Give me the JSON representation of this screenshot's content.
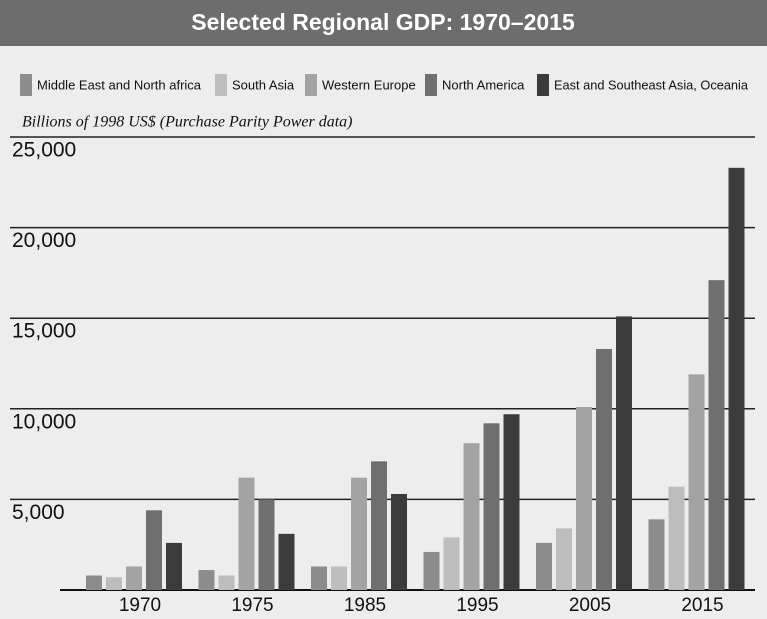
{
  "chart_data": {
    "type": "bar",
    "title": "Selected Regional GDP: 1970–2015",
    "subtitle": "Billions of 1998 US$ (Purchase Parity Power data)",
    "categories": [
      "1970",
      "1975",
      "1985",
      "1995",
      "2005",
      "2015"
    ],
    "series": [
      {
        "name": "Middle East and North africa",
        "color": "#8c8c8c",
        "values": [
          800,
          1100,
          1300,
          2100,
          2600,
          3900
        ]
      },
      {
        "name": "South Asia",
        "color": "#bdbdbd",
        "values": [
          700,
          800,
          1300,
          2900,
          3400,
          5700
        ]
      },
      {
        "name": "Western Europe",
        "color": "#a3a3a3",
        "values": [
          1300,
          6200,
          6200,
          8100,
          10100,
          11900
        ]
      },
      {
        "name": "North America",
        "color": "#6f6f6f",
        "values": [
          4400,
          5000,
          7100,
          9200,
          13300,
          17100
        ]
      },
      {
        "name": "East and Southeast Asia, Oceania",
        "color": "#3b3b3b",
        "values": [
          2600,
          3100,
          5300,
          9700,
          15100,
          23300
        ]
      }
    ],
    "ylim": [
      0,
      25000
    ],
    "yticks": [
      {
        "value": 5000,
        "label": "5,000"
      },
      {
        "value": 10000,
        "label": "10,000"
      },
      {
        "value": 15000,
        "label": "15,000"
      },
      {
        "value": 20000,
        "label": "20,000"
      },
      {
        "value": 25000,
        "label": "25,000"
      }
    ],
    "grid": true
  }
}
